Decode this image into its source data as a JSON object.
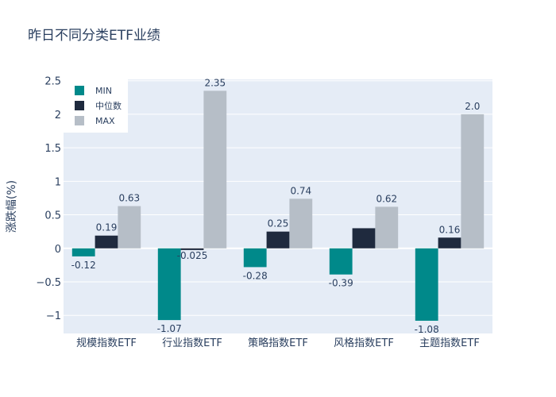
{
  "chart_data": {
    "type": "bar",
    "title": "昨日不同分类ETF业绩",
    "xlabel": "",
    "ylabel": "涨跌幅(%)",
    "ylim": [
      -1.27,
      2.52
    ],
    "yticks": [
      -1,
      -0.5,
      0,
      0.5,
      1,
      1.5,
      2,
      2.5
    ],
    "ytick_labels": [
      "−1",
      "−0.5",
      "0",
      "0.5",
      "1",
      "1.5",
      "2",
      "2.5"
    ],
    "categories": [
      "规模指数ETF",
      "行业指数ETF",
      "策略指数ETF",
      "风格指数ETF",
      "主题指数ETF"
    ],
    "series": [
      {
        "name": "MIN",
        "color": "#00898a",
        "values": [
          -0.12,
          -1.07,
          -0.28,
          -0.39,
          -1.08
        ],
        "labels": [
          "-0.12",
          "-1.07",
          "-0.28",
          "-0.39",
          "-1.08"
        ]
      },
      {
        "name": "中位数",
        "color": "#1f2a3e",
        "values": [
          0.19,
          -0.025,
          0.25,
          0.3,
          0.16
        ],
        "labels": [
          "0.19",
          "-0.025",
          "0.25",
          "",
          "0.16"
        ]
      },
      {
        "name": "MAX",
        "color": "#b6bec7",
        "values": [
          0.63,
          2.35,
          0.74,
          0.62,
          2.0
        ],
        "labels": [
          "0.63",
          "2.35",
          "0.74",
          "0.62",
          "2.0"
        ]
      }
    ],
    "grid": true,
    "legend_position": "top-left",
    "plot_background": "#e5ecf6",
    "grid_color": "#ffffff",
    "text_color": "#2a3f5f"
  }
}
